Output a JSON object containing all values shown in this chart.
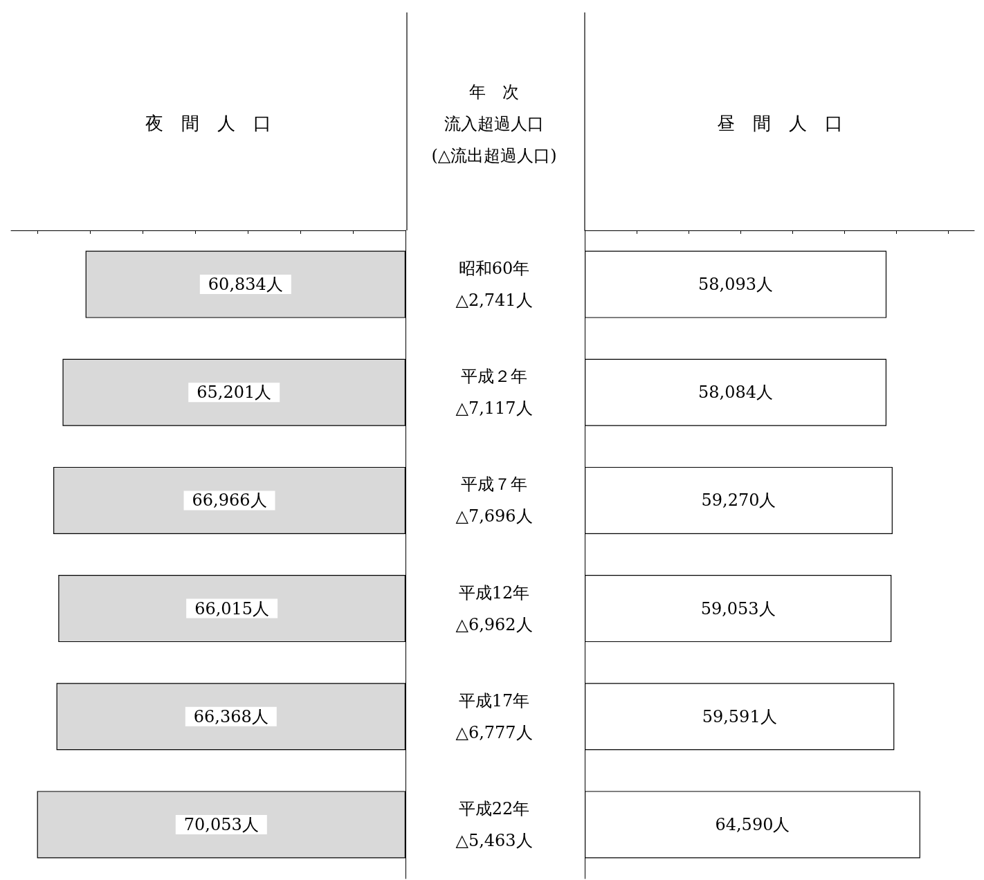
{
  "chart_data": [
    {
      "type": "bar",
      "orientation": "horizontal",
      "title": "夜　間　人　口",
      "ylabel": "年　次",
      "annotations": [
        "流入超過人口\n(△流出超過人口)"
      ],
      "categories": [
        "昭和60年\n△2,741人",
        "平成２年\n△7,117人",
        "平成７年\n△7,696人",
        "平成12年\n△6,962人",
        "平成17年\n△6,777人",
        "平成22年\n△5,463人"
      ],
      "color": "#d9d9d9",
      "values": [
        60834,
        65201,
        66966,
        66015,
        66368,
        70053
      ],
      "value_labels": [
        "60,834人",
        "65,201人",
        "66,966人",
        "66,015人",
        "66,368人",
        "70,053人"
      ],
      "xlim": [
        75000,
        0
      ],
      "xticks": [
        {
          "value": 0,
          "label": null
        },
        {
          "value": 10000,
          "label": null
        },
        {
          "value": 20000,
          "label": null
        },
        {
          "value": 30000,
          "label": null
        },
        {
          "value": 40000,
          "label": null
        },
        {
          "value": 50000,
          "label": null
        },
        {
          "value": 60000,
          "label": null
        },
        {
          "value": 70000,
          "label": null
        }
      ]
    },
    {
      "type": "bar",
      "orientation": "horizontal",
      "title": "昼　間　人　口",
      "categories": [
        null,
        null,
        null,
        null,
        null,
        null
      ],
      "color": "#ffffff",
      "values": [
        58093,
        58084,
        59270,
        59053,
        59591,
        64590
      ],
      "value_labels": [
        "58,093人",
        "58,084人",
        "59,270人",
        "59,053人",
        "59,591人",
        "64,590人"
      ],
      "xlim": [
        0,
        75000
      ],
      "xticks": [
        {
          "value": 0,
          "label": null
        },
        {
          "value": 10000,
          "label": null
        },
        {
          "value": 20000,
          "label": null
        },
        {
          "value": 30000,
          "label": null
        },
        {
          "value": 40000,
          "label": null
        },
        {
          "value": 50000,
          "label": null
        },
        {
          "value": 60000,
          "label": null
        },
        {
          "value": 70000,
          "label": null
        }
      ]
    }
  ]
}
